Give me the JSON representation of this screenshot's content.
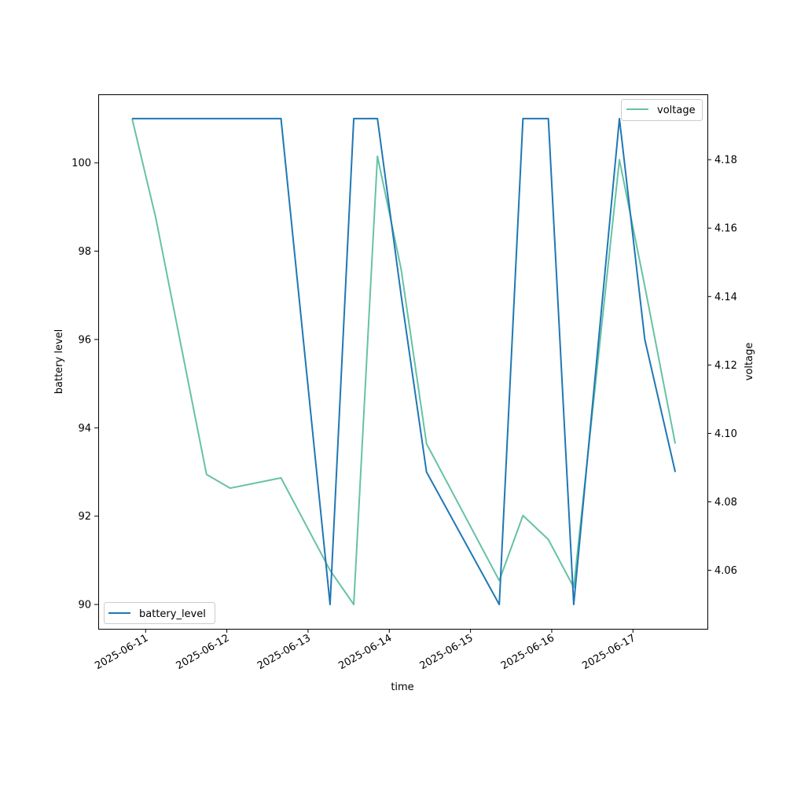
{
  "chart_data": {
    "type": "line",
    "x": [
      "2025-06-10T20:00",
      "2025-06-11T03:00",
      "2025-06-11T18:00",
      "2025-06-12T01:00",
      "2025-06-12T16:00",
      "2025-06-13T06:30",
      "2025-06-13T13:30",
      "2025-06-13T20:30",
      "2025-06-14T03:30",
      "2025-06-14T11:00",
      "2025-06-15T08:30",
      "2025-06-15T15:30",
      "2025-06-15T23:00",
      "2025-06-16T06:30",
      "2025-06-16T20:00",
      "2025-06-17T03:30",
      "2025-06-17T12:30"
    ],
    "series": [
      {
        "name": "battery_level",
        "color": "#1f77b4",
        "axis": "left",
        "values": [
          101,
          101,
          101,
          101,
          101,
          90,
          101,
          101,
          97,
          93,
          90,
          101,
          101,
          90,
          101,
          96,
          93
        ]
      },
      {
        "name": "voltage",
        "color": "#66c2a5",
        "axis": "right",
        "values": [
          4.192,
          4.163,
          4.088,
          4.084,
          4.087,
          4.06,
          4.05,
          4.181,
          4.148,
          4.097,
          4.057,
          4.076,
          4.069,
          4.055,
          4.18,
          4.143,
          4.097
        ]
      }
    ],
    "xlabel": "time",
    "ylabel": "battery level",
    "y2label": "voltage",
    "xlim": [
      "2025-06-10T10:00",
      "2025-06-17T22:00"
    ],
    "ylim": [
      89.45,
      101.55
    ],
    "y2lim": [
      4.0429,
      4.1991
    ],
    "x_ticks": [
      "2025-06-11",
      "2025-06-12",
      "2025-06-13",
      "2025-06-14",
      "2025-06-15",
      "2025-06-16",
      "2025-06-17"
    ],
    "y_ticks": [
      "90",
      "92",
      "94",
      "96",
      "98",
      "100"
    ],
    "y2_ticks": [
      "4.06",
      "4.08",
      "4.10",
      "4.12",
      "4.14",
      "4.16",
      "4.18"
    ],
    "grid": false,
    "legends": [
      {
        "label": "battery_level",
        "placement": "lower-left"
      },
      {
        "label": "voltage",
        "placement": "upper-right"
      }
    ]
  }
}
